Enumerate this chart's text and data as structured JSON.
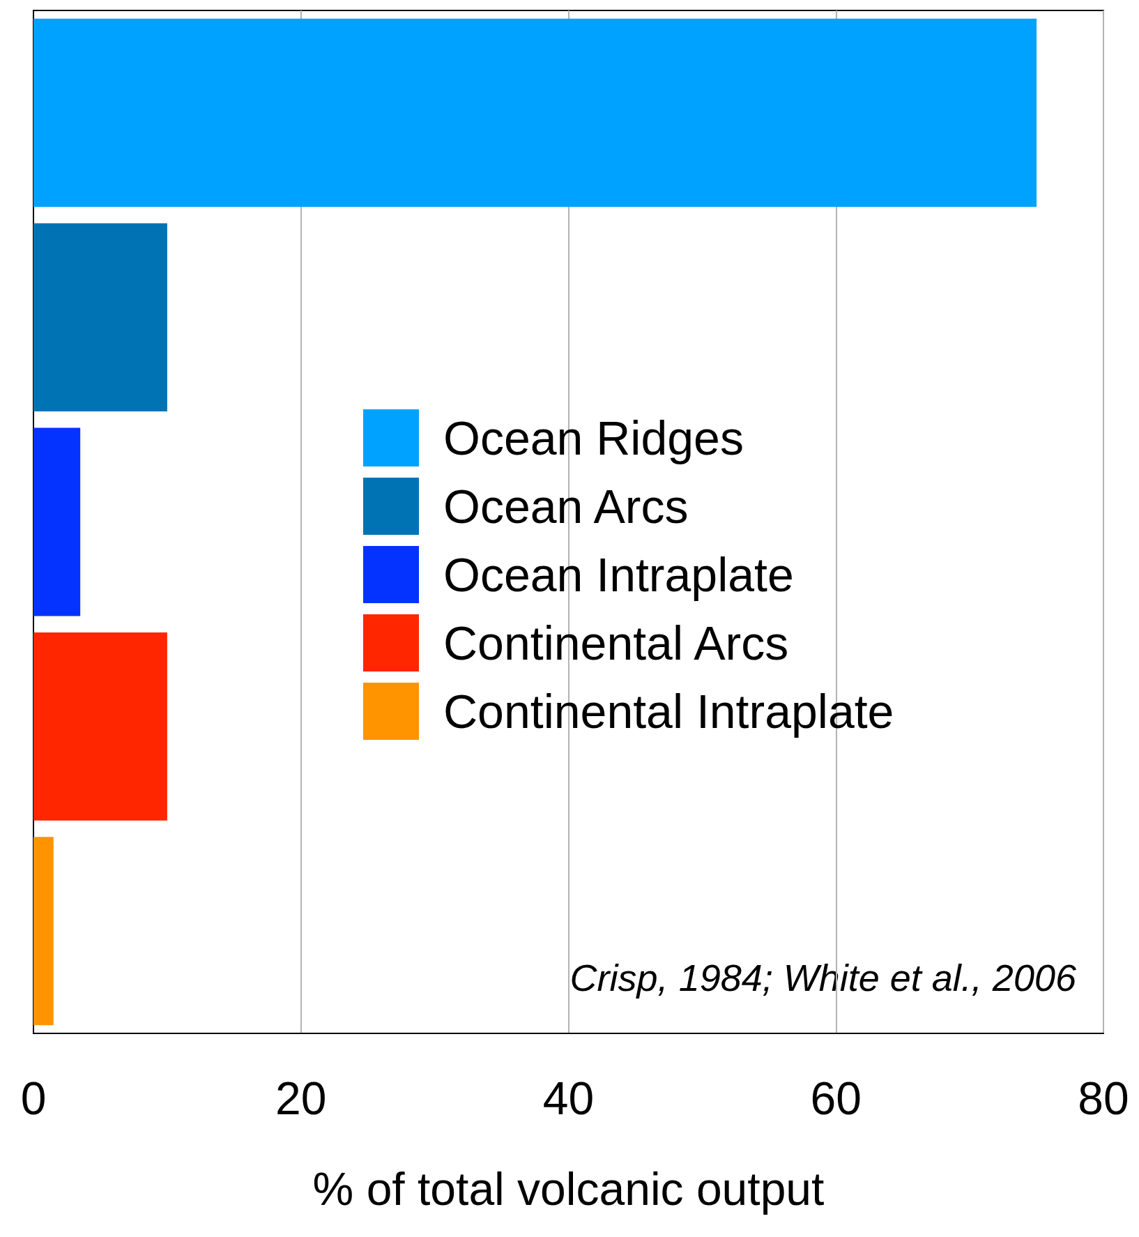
{
  "chart_data": {
    "type": "bar",
    "orientation": "horizontal",
    "stacked": true,
    "xlabel": "% of total volcanic output",
    "categories": [
      null,
      null,
      null,
      null,
      null
    ],
    "series": [
      {
        "name": "Ocean Ridges",
        "color": "#00a2ff",
        "values": [
          75,
          null,
          null,
          null,
          null
        ]
      },
      {
        "name": "Ocean Arcs",
        "color": "#0073b5",
        "values": [
          null,
          10,
          null,
          null,
          null
        ]
      },
      {
        "name": "Ocean Intraplate",
        "color": "#0433ff",
        "values": [
          null,
          null,
          3.5,
          null,
          null
        ]
      },
      {
        "name": "Continental Arcs",
        "color": "#ff2600",
        "values": [
          null,
          null,
          null,
          10,
          null
        ]
      },
      {
        "name": "Continental Intraplate",
        "color": "#ff9300",
        "values": [
          null,
          null,
          null,
          null,
          1.5
        ]
      }
    ],
    "xlim": [
      0,
      80
    ],
    "xticks": [
      0,
      20,
      40,
      60,
      80
    ],
    "grid": "x",
    "legend": "right",
    "annotations": [
      "Crisp, 1984; White et al., 2006"
    ]
  }
}
